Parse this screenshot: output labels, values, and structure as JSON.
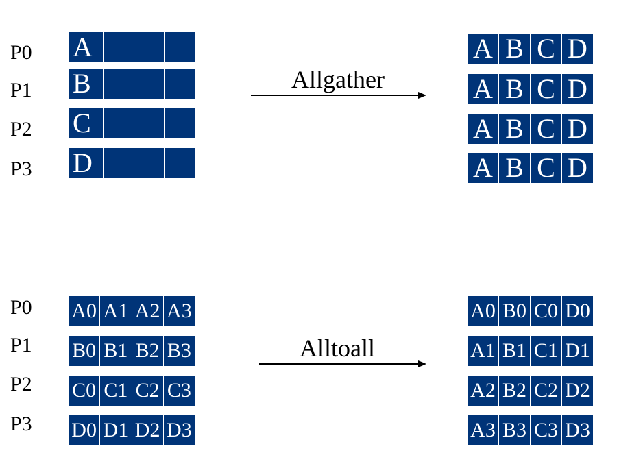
{
  "top": {
    "processes": [
      "P0",
      "P1",
      "P2",
      "P3"
    ],
    "input_rows": [
      [
        "A",
        "",
        "",
        ""
      ],
      [
        "B",
        "",
        "",
        ""
      ],
      [
        "C",
        "",
        "",
        ""
      ],
      [
        "D",
        "",
        "",
        ""
      ]
    ],
    "operation": "Allgather",
    "output_rows": [
      [
        "A",
        "B",
        "C",
        "D"
      ],
      [
        "A",
        "B",
        "C",
        "D"
      ],
      [
        "A",
        "B",
        "C",
        "D"
      ],
      [
        "A",
        "B",
        "C",
        "D"
      ]
    ]
  },
  "bottom": {
    "processes": [
      "P0",
      "P1",
      "P2",
      "P3"
    ],
    "input_rows": [
      [
        "A0",
        "A1",
        "A2",
        "A3"
      ],
      [
        "B0",
        "B1",
        "B2",
        "B3"
      ],
      [
        "C0",
        "C1",
        "C2",
        "C3"
      ],
      [
        "D0",
        "D1",
        "D2",
        "D3"
      ]
    ],
    "operation": "Alltoall",
    "output_rows": [
      [
        "A0",
        "B0",
        "C0",
        "D0"
      ],
      [
        "A1",
        "B1",
        "C1",
        "D1"
      ],
      [
        "A2",
        "B2",
        "C2",
        "D2"
      ],
      [
        "A3",
        "B3",
        "C3",
        "D3"
      ]
    ]
  },
  "colors": {
    "block": "#003478",
    "text": "#ffffff",
    "arrow": "#000000"
  }
}
